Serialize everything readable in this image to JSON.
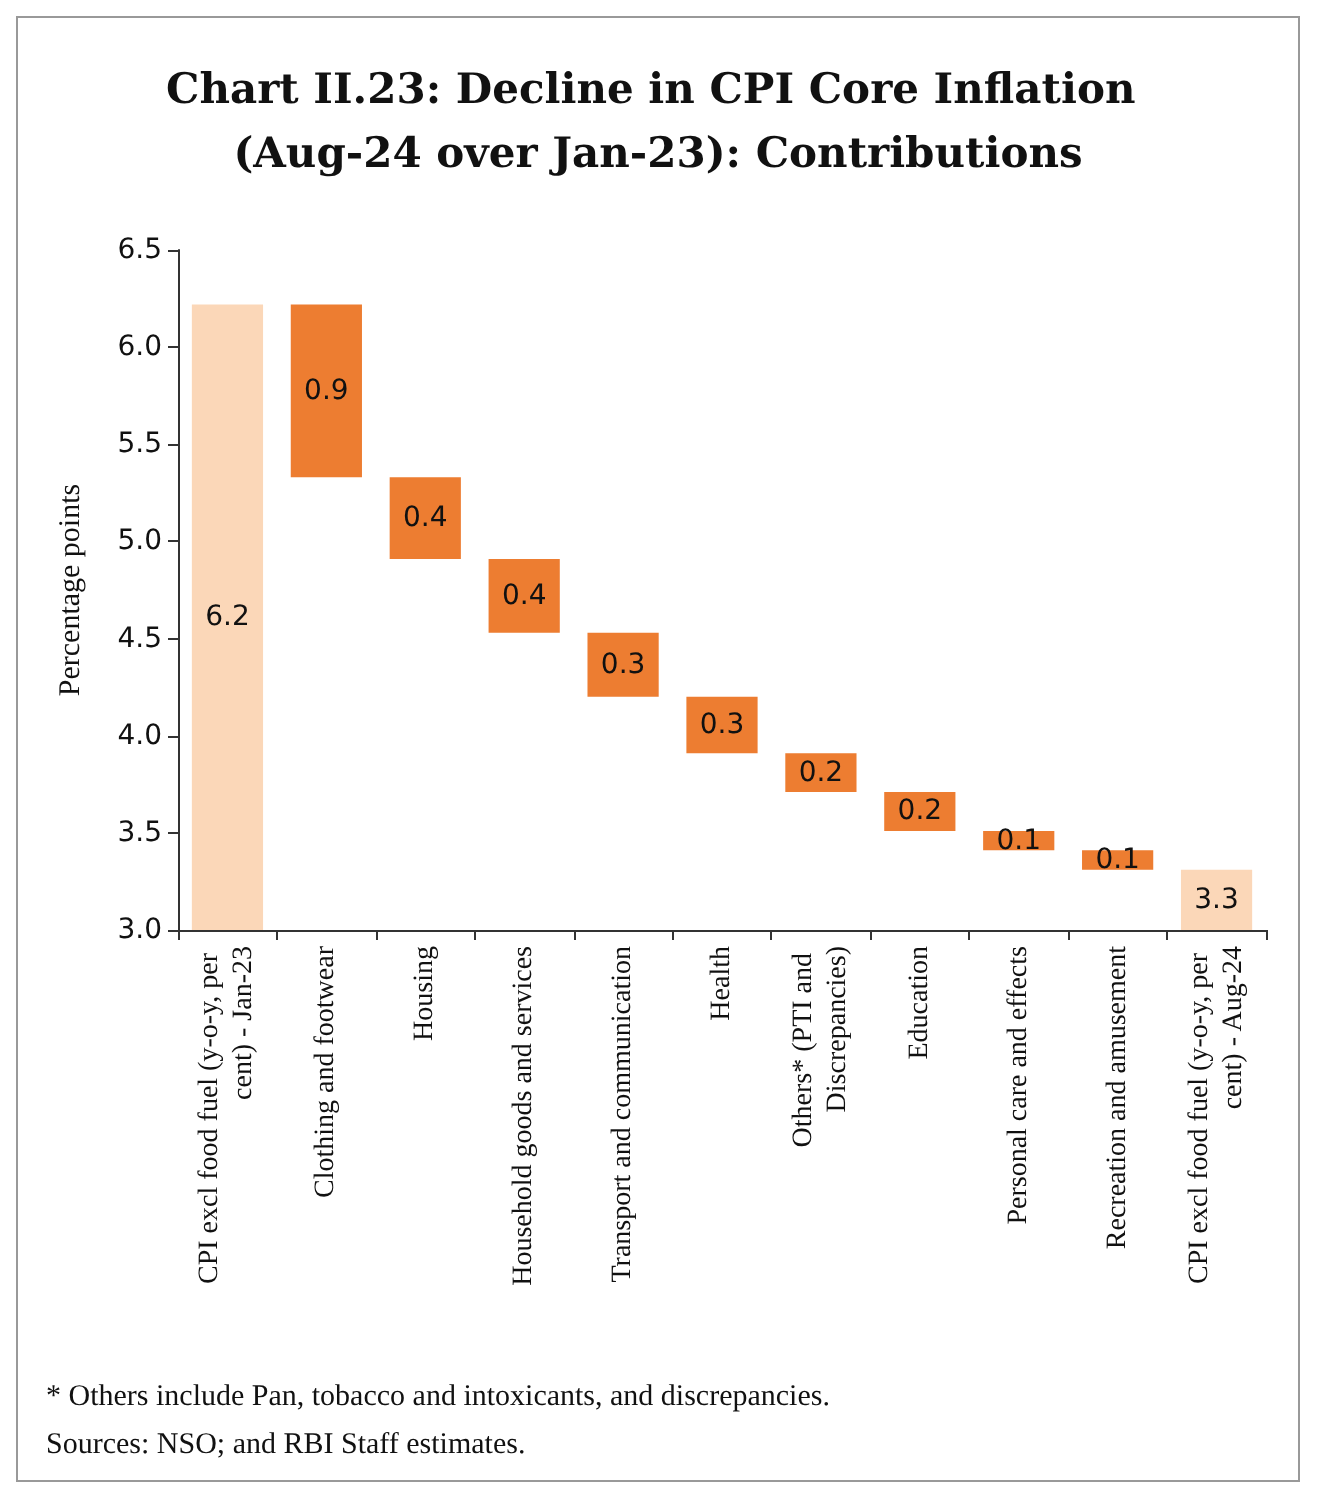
{
  "chart_data": {
    "type": "bar",
    "title": "Chart II.23: Decline in CPI Core Inflation (Aug-24 over Jan-23): Contributions",
    "ylabel": "Percentage points",
    "categories": [
      "CPI excl food fuel (y-o-y, per cent) - Jan-23",
      "Clothing and footwear",
      "Housing",
      "Household goods and services",
      "Transport and communication",
      "Health",
      "Others* (PTI and Discrepancies)",
      "Education",
      "Personal care and effects",
      "Recreation and amusement",
      "CPI excl food fuel (y-o-y, per cent) - Aug-24"
    ],
    "base": [
      3,
      5.33,
      4.91,
      4.53,
      4.2,
      3.91,
      3.71,
      3.51,
      3.41,
      3.31,
      3
    ],
    "values": [
      3.22,
      0.89,
      0.42,
      0.38,
      0.33,
      0.29,
      0.2,
      0.2,
      0.1,
      0.1,
      0.31
    ],
    "value_labels": [
      "6.2",
      "0.9",
      "0.4",
      "0.4",
      "0.3",
      "0.3",
      "0.2",
      "0.2",
      "0.1",
      "0.1",
      "3.3"
    ],
    "colors": [
      "#fbd7b8",
      "#ed7d31",
      "#ed7d31",
      "#ed7d31",
      "#ed7d31",
      "#ed7d31",
      "#ed7d31",
      "#ed7d31",
      "#ed7d31",
      "#ed7d31",
      "#fbd7b8"
    ],
    "ylim": [
      3,
      6.5
    ],
    "yticks": [
      {
        "value": 3,
        "label": "3.0"
      },
      {
        "value": 3.5,
        "label": "3.5"
      },
      {
        "value": 4,
        "label": "4.0"
      },
      {
        "value": 4.5,
        "label": "4.5"
      },
      {
        "value": 5,
        "label": "5.0"
      },
      {
        "value": 5.5,
        "label": "5.5"
      },
      {
        "value": 6,
        "label": "6.0"
      },
      {
        "value": 6.5,
        "label": "6.5"
      }
    ],
    "grid": false,
    "annotations": [
      "* Others include Pan, tobacco and intoxicants, and discrepancies.",
      "Sources: NSO; and RBI Staff estimates."
    ]
  }
}
